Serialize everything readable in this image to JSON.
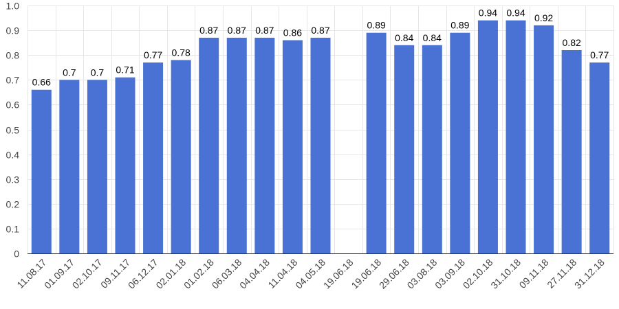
{
  "chart_data": {
    "type": "bar",
    "title": "",
    "xlabel": "",
    "ylabel": "",
    "ylim": [
      0,
      1.0
    ],
    "yticks": [
      "0",
      "0.1",
      "0.2",
      "0.3",
      "0.4",
      "0.5",
      "0.6",
      "0.7",
      "0.8",
      "0.9",
      "1.0"
    ],
    "categories": [
      "11.08.17",
      "01.09.17",
      "02.10.17",
      "09.11.17",
      "06.12.17",
      "02.01.18",
      "01.02.18",
      "06.03.18",
      "04.04.18",
      "11.04.18",
      "04.05.18",
      "19.06.18",
      "19.06.18",
      "29.06.18",
      "03.08.18",
      "03.09.18",
      "02.10.18",
      "31.10.18",
      "09.11.18",
      "27.11.18",
      "31.12.18"
    ],
    "values": [
      0.66,
      0.7,
      0.7,
      0.71,
      0.77,
      0.78,
      0.87,
      0.87,
      0.87,
      0.86,
      0.87,
      null,
      0.89,
      0.84,
      0.84,
      0.89,
      0.94,
      0.94,
      0.92,
      0.82,
      0.77
    ],
    "data_labels": [
      "0.66",
      "0.7",
      "0.7",
      "0.71",
      "0.77",
      "0.78",
      "0.87",
      "0.87",
      "0.87",
      "0.86",
      "0.87",
      "",
      "0.89",
      "0.84",
      "0.84",
      "0.89",
      "0.94",
      "0.94",
      "0.92",
      "0.82",
      "0.77"
    ],
    "grid": true,
    "colors": {
      "bar": "#4a72d4",
      "grid": "#e6e6e6",
      "axis": "#333333"
    }
  }
}
